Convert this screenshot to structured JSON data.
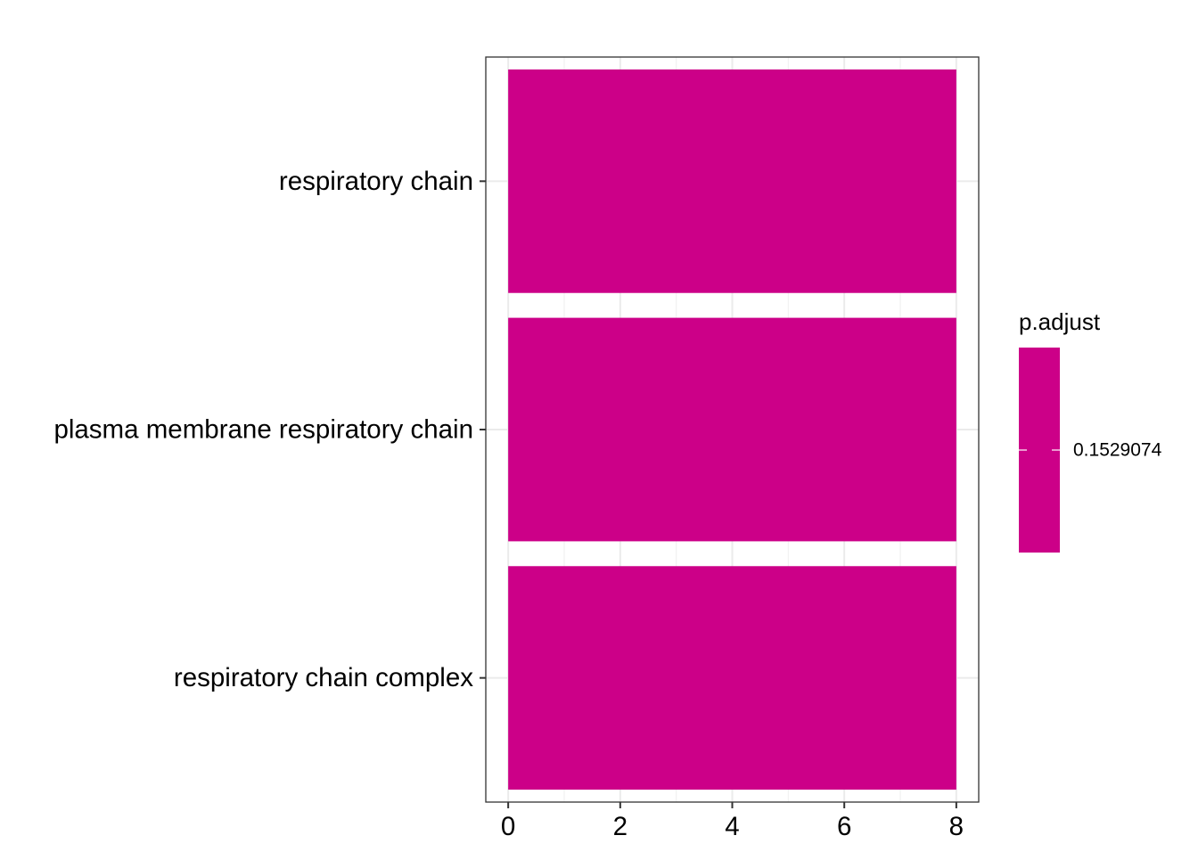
{
  "chart_data": {
    "type": "bar",
    "orientation": "horizontal",
    "categories": [
      "respiratory chain",
      "plasma membrane respiratory chain",
      "respiratory chain complex"
    ],
    "values": [
      8,
      8,
      8
    ],
    "title": "",
    "xlabel": "",
    "ylabel": "",
    "xlim": [
      -0.4,
      8.4
    ],
    "xticks": [
      "0",
      "2",
      "4",
      "6",
      "8"
    ],
    "grid": true,
    "bar_color": "#CC0088",
    "legend": {
      "title": "p.adjust",
      "position": "right",
      "color": "#CC0088",
      "labels": [
        "0.1529074"
      ]
    }
  }
}
